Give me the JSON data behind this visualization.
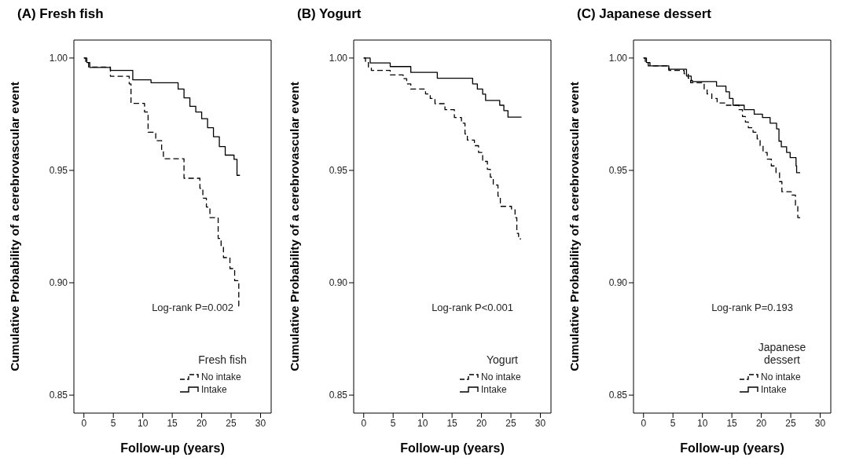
{
  "chart_data": [
    {
      "type": "step",
      "title": "(A) Fresh fish",
      "xlabel": "Follow-up (years)",
      "ylabel": "Cumulative Probability of a cerebrovascular event",
      "legend_title": "Fresh fish",
      "legend": "bottom right",
      "annotations": [
        "Log-rank P=0.002"
      ],
      "xlim": [
        -1.7,
        31.8
      ],
      "xticks": [
        0,
        5,
        10,
        15,
        20,
        25,
        30
      ],
      "ylim": [
        0.842,
        1.008
      ],
      "yticks": [
        {
          "value": 0.85,
          "label": "0.85"
        },
        {
          "value": 0.9,
          "label": "0.90"
        },
        {
          "value": 0.95,
          "label": "0.95"
        },
        {
          "value": 1,
          "label": "1.00"
        }
      ],
      "series": [
        {
          "name": "No intake",
          "color": "#000000",
          "line_style": "dashed",
          "x": [
            0,
            0.3,
            0.8,
            4.5,
            7.7,
            8,
            10.3,
            10.9,
            12.2,
            13.2,
            13.5,
            17,
            19.7,
            20.2,
            20.8,
            21.4,
            22.8,
            23.3,
            23.7,
            24.8,
            25.6,
            26.3,
            26.6
          ],
          "values": [
            1,
            0.998,
            0.996,
            0.9919,
            0.9885,
            0.9798,
            0.976,
            0.967,
            0.9632,
            0.9593,
            0.9552,
            0.9465,
            0.942,
            0.9376,
            0.9337,
            0.929,
            0.9197,
            0.9158,
            0.9112,
            0.9063,
            0.9009,
            0.8896,
            0.8896
          ]
        },
        {
          "name": "Intake",
          "color": "#000000",
          "line_style": "solid",
          "x": [
            0,
            0.5,
            1,
            4.5,
            8.3,
            11.4,
            16,
            17,
            18,
            19,
            20,
            21,
            22,
            23,
            24,
            25.5,
            26,
            26.5
          ],
          "values": [
            1,
            0.998,
            0.9958,
            0.9945,
            0.9903,
            0.989,
            0.9862,
            0.9823,
            0.9785,
            0.976,
            0.973,
            0.969,
            0.965,
            0.9606,
            0.9568,
            0.9549,
            0.9478,
            0.9478
          ]
        }
      ]
    },
    {
      "type": "step",
      "title": "(B) Yogurt",
      "xlabel": "Follow-up (years)",
      "ylabel": "Cumulative Probability of a cerebrovascular event",
      "legend_title": "Yogurt",
      "legend": "bottom right",
      "annotations": [
        "Log-rank P<0.001"
      ],
      "xlim": [
        -1.7,
        31.8
      ],
      "xticks": [
        0,
        5,
        10,
        15,
        20,
        25,
        30
      ],
      "ylim": [
        0.842,
        1.008
      ],
      "yticks": [
        {
          "value": 0.85,
          "label": "0.85"
        },
        {
          "value": 0.9,
          "label": "0.90"
        },
        {
          "value": 0.95,
          "label": "0.95"
        },
        {
          "value": 1,
          "label": "1.00"
        }
      ],
      "series": [
        {
          "name": "No intake",
          "color": "#000000",
          "line_style": "dashed",
          "x": [
            0,
            0.3,
            0.8,
            1.3,
            4.5,
            6.7,
            7.3,
            8,
            10.5,
            11.3,
            12.1,
            13.8,
            15.4,
            16.6,
            17.2,
            17.6,
            18.8,
            19.5,
            20.2,
            21,
            21.5,
            22,
            22.8,
            23.2,
            25.1,
            25.7,
            26,
            26.3,
            26.7
          ],
          "values": [
            1,
            0.998,
            0.996,
            0.9945,
            0.9925,
            0.9908,
            0.9885,
            0.9862,
            0.984,
            0.982,
            0.9797,
            0.977,
            0.9735,
            0.971,
            0.9662,
            0.9635,
            0.961,
            0.958,
            0.954,
            0.9505,
            0.947,
            0.9435,
            0.9385,
            0.934,
            0.9325,
            0.929,
            0.922,
            0.9195,
            0.9195
          ]
        },
        {
          "name": "Intake",
          "color": "#000000",
          "line_style": "solid",
          "x": [
            0,
            1.1,
            4.5,
            8,
            12.5,
            18.5,
            19.3,
            20.2,
            20.7,
            23.1,
            23.8,
            24.5,
            26.8
          ],
          "values": [
            1,
            0.9978,
            0.9962,
            0.9936,
            0.991,
            0.9885,
            0.9862,
            0.9839,
            0.9811,
            0.979,
            0.9766,
            0.9737,
            0.9737
          ]
        }
      ]
    },
    {
      "type": "step",
      "title": "(C) Japanese dessert",
      "xlabel": "Follow-up (years)",
      "ylabel": "Cumulative Probability of a cerebrovascular event",
      "legend_title": "Japanese dessert",
      "legend": "bottom right",
      "annotations": [
        "Log-rank P=0.193"
      ],
      "xlim": [
        -1.7,
        31.8
      ],
      "xticks": [
        0,
        5,
        10,
        15,
        20,
        25,
        30
      ],
      "ylim": [
        0.842,
        1.008
      ],
      "yticks": [
        {
          "value": 0.85,
          "label": "0.85"
        },
        {
          "value": 0.9,
          "label": "0.90"
        },
        {
          "value": 0.95,
          "label": "0.95"
        },
        {
          "value": 1,
          "label": "1.00"
        }
      ],
      "series": [
        {
          "name": "No intake",
          "color": "#000000",
          "line_style": "dashed",
          "x": [
            0,
            0.3,
            0.8,
            4.3,
            6.9,
            7.6,
            8,
            10.3,
            10.8,
            11.6,
            12.5,
            13.9,
            16.2,
            16.8,
            17.3,
            17.8,
            18.6,
            19.3,
            19.8,
            20.3,
            21,
            21.7,
            22.5,
            23.1,
            23.5,
            25.1,
            25.8,
            26.2,
            26.6
          ],
          "values": [
            1,
            0.998,
            0.9965,
            0.9945,
            0.993,
            0.991,
            0.989,
            0.986,
            0.984,
            0.982,
            0.98,
            0.979,
            0.977,
            0.974,
            0.9715,
            0.969,
            0.967,
            0.964,
            0.961,
            0.958,
            0.955,
            0.952,
            0.949,
            0.945,
            0.9405,
            0.939,
            0.9345,
            0.929,
            0.929
          ]
        },
        {
          "name": "Intake",
          "color": "#000000",
          "line_style": "solid",
          "x": [
            0,
            0.5,
            1.1,
            4.3,
            7.3,
            8.1,
            8.3,
            12.4,
            14,
            14.6,
            15.2,
            17.1,
            18.8,
            20.2,
            21.5,
            22.6,
            23,
            23.4,
            24.3,
            24.9,
            25.9,
            26,
            26.6
          ],
          "values": [
            1,
            0.998,
            0.9965,
            0.995,
            0.992,
            0.99,
            0.9895,
            0.9875,
            0.985,
            0.982,
            0.979,
            0.977,
            0.975,
            0.9735,
            0.971,
            0.9685,
            0.963,
            0.9605,
            0.958,
            0.9557,
            0.952,
            0.949,
            0.949
          ]
        }
      ]
    }
  ]
}
